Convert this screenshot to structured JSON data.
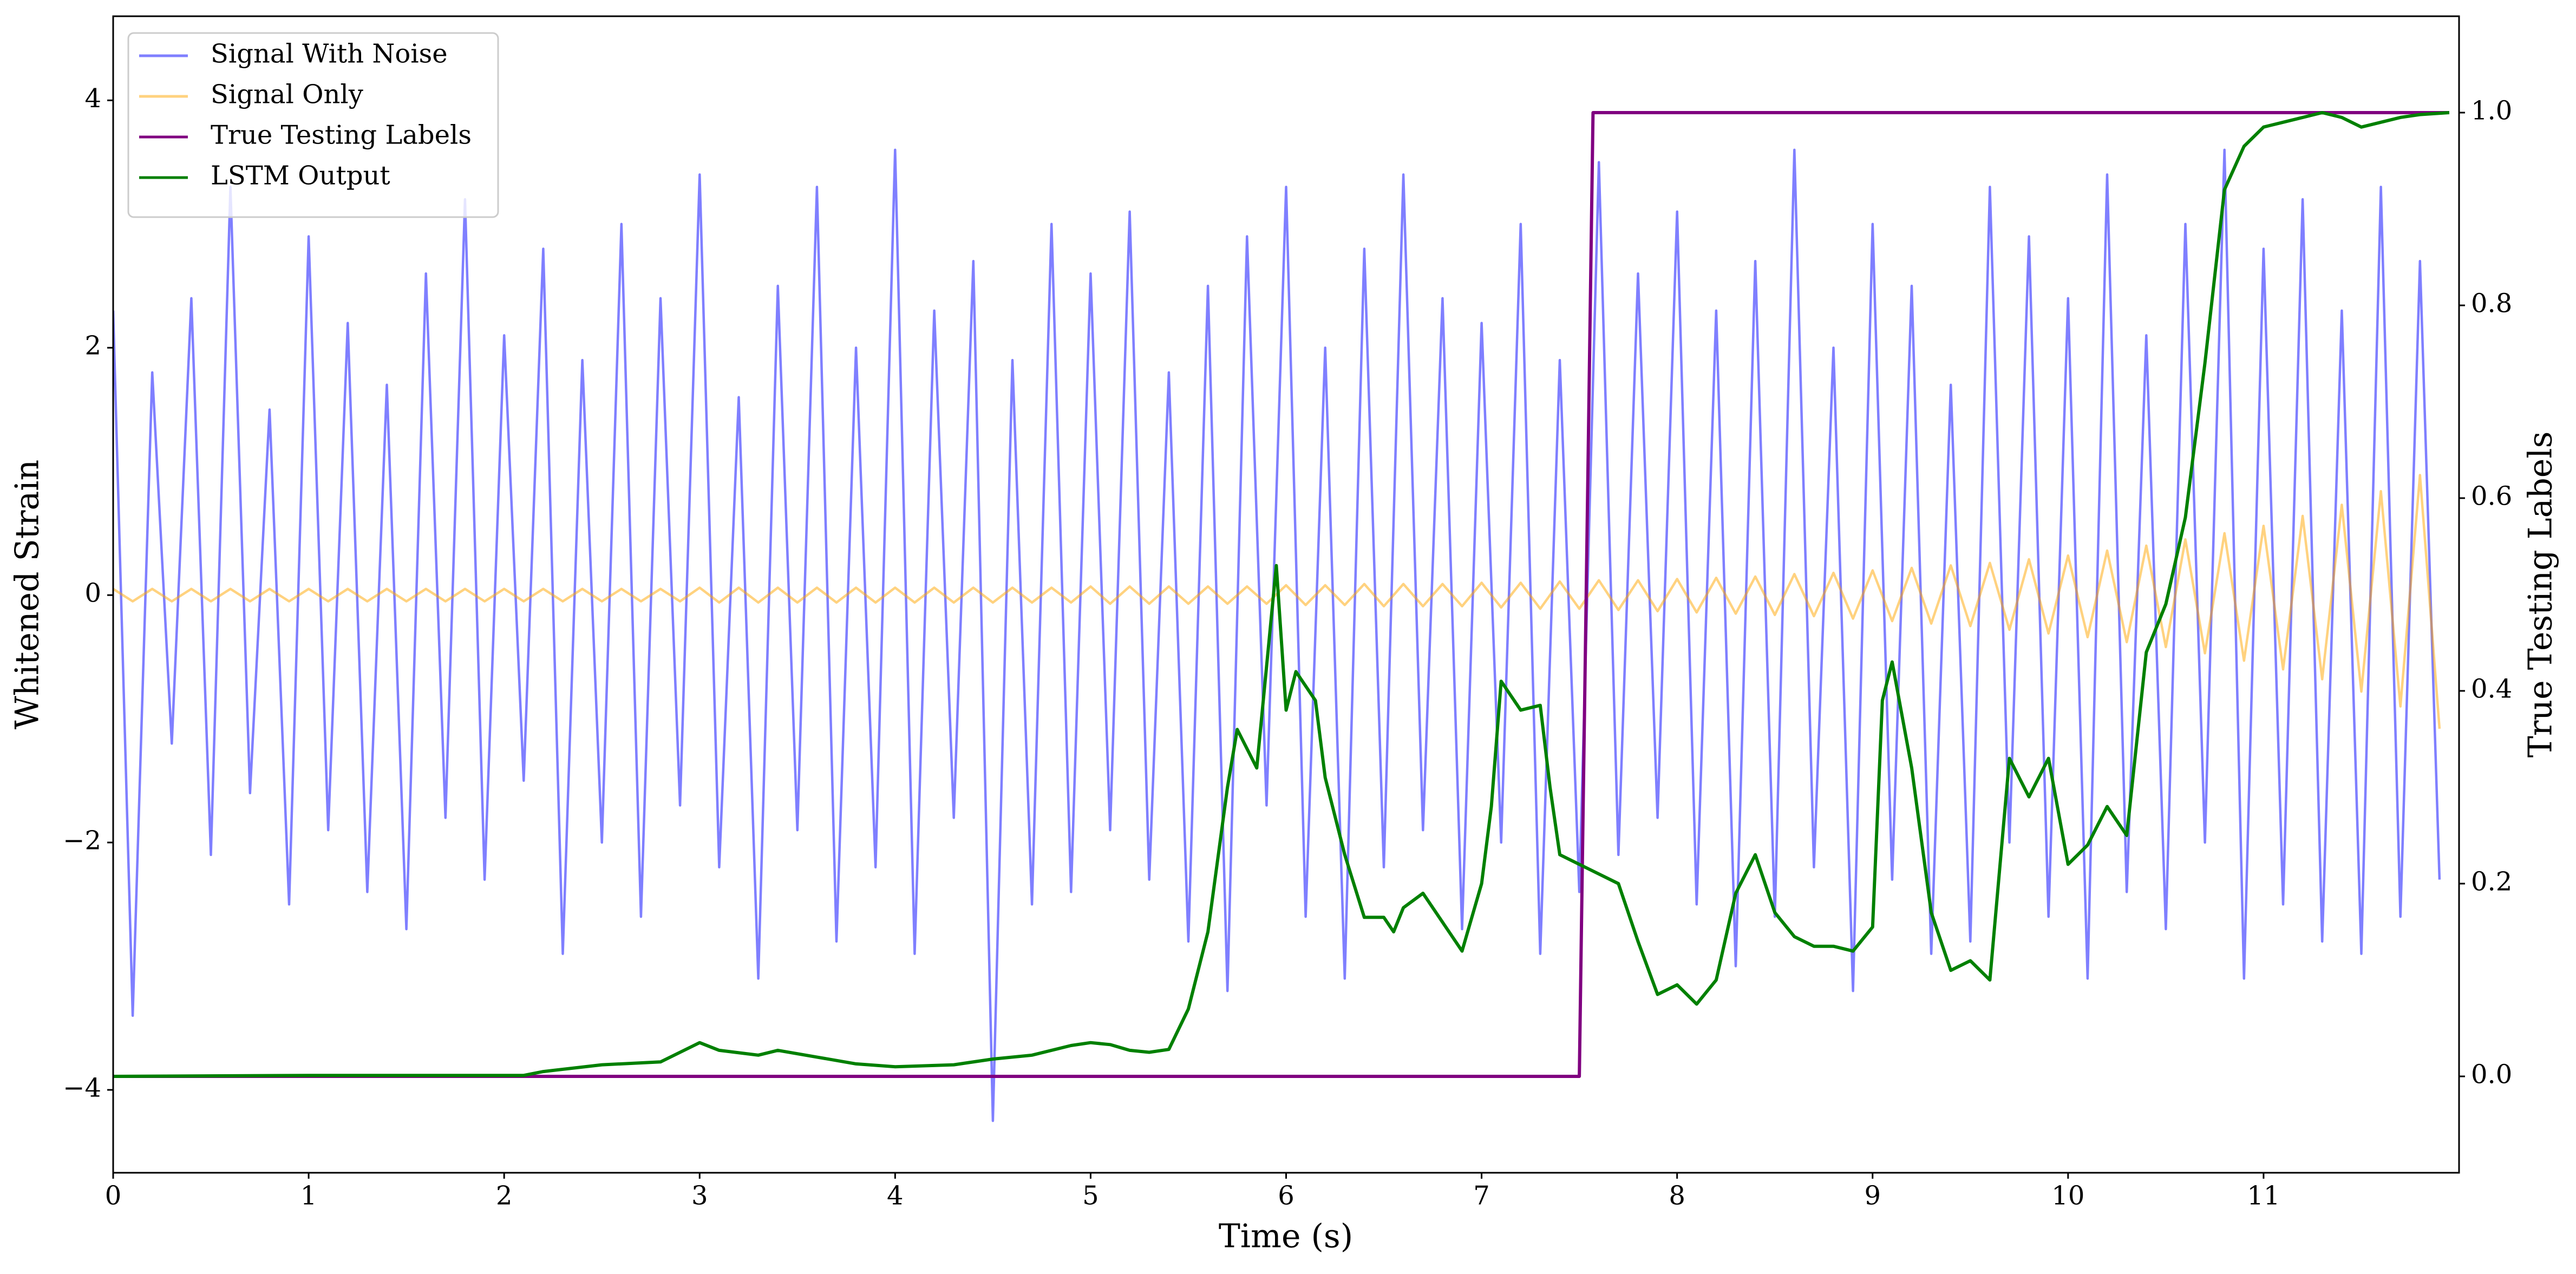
{
  "chart_data": {
    "type": "line",
    "xlabel": "Time (s)",
    "ylabel": "Whitened Strain",
    "y2label": "True Testing Labels",
    "xlim": [
      0,
      12
    ],
    "ylim": [
      -4.67,
      4.68
    ],
    "y2lim": [
      -0.1,
      1.1
    ],
    "xticks": [
      0,
      1,
      2,
      3,
      4,
      5,
      6,
      7,
      8,
      9,
      10,
      11
    ],
    "yticks": [
      {
        "value": -4,
        "label": "−4"
      },
      {
        "value": -2,
        "label": "−2"
      },
      0,
      2,
      4
    ],
    "y2ticks": [
      {
        "value": 0,
        "label": "0.0"
      },
      0.2,
      0.4,
      0.6,
      0.8,
      {
        "value": 1,
        "label": "1.0"
      }
    ],
    "grid": false,
    "legend": "upper left",
    "x": [
      0,
      0.1,
      0.2,
      0.3,
      0.4,
      0.5,
      0.6,
      0.7,
      0.8,
      0.9,
      1,
      1.1,
      1.2,
      1.3,
      1.4,
      1.5,
      1.6,
      1.7,
      1.8,
      1.9,
      2,
      2.1,
      2.2,
      2.3,
      2.4,
      2.5,
      2.6,
      2.7,
      2.8,
      2.9,
      3,
      3.1,
      3.2,
      3.3,
      3.4,
      3.5,
      3.6,
      3.7,
      3.8,
      3.9,
      4,
      4.1,
      4.2,
      4.3,
      4.4,
      4.5,
      4.6,
      4.7,
      4.8,
      4.9,
      5,
      5.1,
      5.2,
      5.3,
      5.4,
      5.5,
      5.6,
      5.7,
      5.8,
      5.9,
      6,
      6.1,
      6.2,
      6.3,
      6.4,
      6.5,
      6.6,
      6.7,
      6.8,
      6.9,
      7,
      7.1,
      7.2,
      7.3,
      7.4,
      7.5,
      7.6,
      7.7,
      7.8,
      7.9,
      8,
      8.1,
      8.2,
      8.3,
      8.4,
      8.5,
      8.6,
      8.7,
      8.8,
      8.9,
      9,
      9.1,
      9.2,
      9.3,
      9.4,
      9.5,
      9.6,
      9.7,
      9.8,
      9.9,
      10,
      10.1,
      10.2,
      10.3,
      10.4,
      10.5,
      10.6,
      10.7,
      10.8,
      10.9,
      11,
      11.1,
      11.2,
      11.3,
      11.4,
      11.5,
      11.6,
      11.7,
      11.8,
      11.9
    ],
    "series": [
      {
        "name": "Signal With Noise",
        "color": "#0000ff",
        "alpha": 0.5,
        "values": [
          2.3,
          -3.4,
          1.8,
          -1.2,
          2.4,
          -2.1,
          3.3,
          -1.6,
          1.5,
          -2.5,
          2.9,
          -1.9,
          2.2,
          -2.4,
          1.7,
          -2.7,
          2.6,
          -1.8,
          3.2,
          -2.3,
          2.1,
          -1.5,
          2.8,
          -2.9,
          1.9,
          -2.0,
          3.0,
          -2.6,
          2.4,
          -1.7,
          3.4,
          -2.2,
          1.6,
          -3.1,
          2.5,
          -1.9,
          3.3,
          -2.8,
          2.0,
          -2.2,
          3.6,
          -2.9,
          2.3,
          -1.8,
          2.7,
          -4.25,
          1.9,
          -2.5,
          3.0,
          -2.4,
          2.6,
          -1.9,
          3.1,
          -2.3,
          1.8,
          -2.8,
          2.5,
          -3.2,
          2.9,
          -1.7,
          3.3,
          -2.6,
          2.0,
          -3.1,
          2.8,
          -2.2,
          3.4,
          -1.9,
          2.4,
          -2.7,
          2.2,
          -2.0,
          3.0,
          -2.9,
          1.9,
          -2.4,
          3.5,
          -2.1,
          2.6,
          -1.8,
          3.1,
          -2.5,
          2.3,
          -3.0,
          2.7,
          -2.6,
          3.6,
          -2.2,
          2.0,
          -3.2,
          3.0,
          -2.3,
          2.5,
          -2.9,
          1.7,
          -2.8,
          3.3,
          -2.0,
          2.9,
          -2.6,
          2.4,
          -3.1,
          3.4,
          -2.4,
          2.1,
          -2.7,
          3.0,
          -2.0,
          3.6,
          -3.1,
          2.8,
          -2.5,
          3.2,
          -2.8,
          2.3,
          -2.9,
          3.3,
          -2.6,
          2.7,
          -2.3
        ]
      },
      {
        "name": "Signal Only",
        "color": "#ffa500",
        "alpha": 0.5,
        "values": [
          0.05,
          -0.05,
          0.05,
          -0.05,
          0.05,
          -0.05,
          0.05,
          -0.05,
          0.05,
          -0.05,
          0.05,
          -0.05,
          0.05,
          -0.05,
          0.05,
          -0.05,
          0.05,
          -0.05,
          0.05,
          -0.05,
          0.05,
          -0.05,
          0.05,
          -0.05,
          0.05,
          -0.05,
          0.05,
          -0.05,
          0.05,
          -0.05,
          0.06,
          -0.06,
          0.06,
          -0.06,
          0.06,
          -0.06,
          0.06,
          -0.06,
          0.06,
          -0.06,
          0.06,
          -0.06,
          0.06,
          -0.06,
          0.06,
          -0.06,
          0.06,
          -0.06,
          0.06,
          -0.06,
          0.07,
          -0.07,
          0.07,
          -0.07,
          0.07,
          -0.07,
          0.07,
          -0.07,
          0.07,
          -0.07,
          0.08,
          -0.08,
          0.08,
          -0.08,
          0.09,
          -0.09,
          0.09,
          -0.09,
          0.09,
          -0.09,
          0.1,
          -0.1,
          0.1,
          -0.11,
          0.11,
          -0.11,
          0.12,
          -0.12,
          0.12,
          -0.13,
          0.13,
          -0.14,
          0.14,
          -0.15,
          0.15,
          -0.16,
          0.17,
          -0.17,
          0.18,
          -0.19,
          0.2,
          -0.21,
          0.22,
          -0.23,
          0.24,
          -0.25,
          0.26,
          -0.28,
          0.29,
          -0.31,
          0.32,
          -0.34,
          0.36,
          -0.38,
          0.4,
          -0.42,
          0.45,
          -0.47,
          0.5,
          -0.53,
          0.56,
          -0.6,
          0.64,
          -0.68,
          0.73,
          -0.78,
          0.84,
          -0.9,
          0.97,
          -1.08
        ]
      },
      {
        "name": "True Testing Labels",
        "color": "#800080",
        "axis": "y2",
        "x": [
          0,
          7.5,
          7.57,
          11.95
        ],
        "values": [
          0,
          0,
          1,
          1
        ]
      },
      {
        "name": "LSTM Output",
        "color": "#008000",
        "axis": "y2",
        "x": [
          0,
          1,
          2.1,
          2.2,
          2.5,
          2.8,
          3.0,
          3.1,
          3.3,
          3.4,
          3.6,
          3.8,
          4.0,
          4.3,
          4.5,
          4.7,
          4.9,
          5.0,
          5.1,
          5.2,
          5.3,
          5.4,
          5.5,
          5.6,
          5.7,
          5.75,
          5.85,
          5.95,
          6.0,
          6.05,
          6.15,
          6.2,
          6.3,
          6.4,
          6.5,
          6.55,
          6.6,
          6.7,
          6.8,
          6.9,
          7.0,
          7.05,
          7.1,
          7.2,
          7.3,
          7.35,
          7.4,
          7.5,
          7.6,
          7.7,
          7.8,
          7.9,
          8.0,
          8.1,
          8.2,
          8.3,
          8.4,
          8.5,
          8.6,
          8.7,
          8.8,
          8.9,
          9.0,
          9.05,
          9.1,
          9.2,
          9.3,
          9.4,
          9.5,
          9.6,
          9.7,
          9.8,
          9.9,
          10.0,
          10.1,
          10.2,
          10.3,
          10.4,
          10.5,
          10.6,
          10.7,
          10.8,
          10.9,
          11.0,
          11.1,
          11.2,
          11.3,
          11.4,
          11.5,
          11.6,
          11.7,
          11.8,
          11.95
        ],
        "values": [
          0,
          0.001,
          0.001,
          0.005,
          0.012,
          0.015,
          0.035,
          0.027,
          0.022,
          0.027,
          0.02,
          0.013,
          0.01,
          0.012,
          0.018,
          0.022,
          0.032,
          0.035,
          0.033,
          0.027,
          0.025,
          0.028,
          0.07,
          0.15,
          0.3,
          0.36,
          0.32,
          0.53,
          0.38,
          0.42,
          0.39,
          0.31,
          0.23,
          0.165,
          0.165,
          0.15,
          0.175,
          0.19,
          0.16,
          0.13,
          0.2,
          0.28,
          0.41,
          0.38,
          0.385,
          0.3,
          0.23,
          0.22,
          0.21,
          0.2,
          0.14,
          0.085,
          0.095,
          0.075,
          0.1,
          0.19,
          0.23,
          0.17,
          0.145,
          0.135,
          0.135,
          0.13,
          0.155,
          0.39,
          0.43,
          0.32,
          0.17,
          0.11,
          0.12,
          0.1,
          0.33,
          0.29,
          0.33,
          0.22,
          0.24,
          0.28,
          0.25,
          0.44,
          0.49,
          0.58,
          0.74,
          0.92,
          0.965,
          0.985,
          0.99,
          0.995,
          1.0,
          0.995,
          0.985,
          0.99,
          0.995,
          0.998,
          1.0
        ]
      }
    ]
  }
}
